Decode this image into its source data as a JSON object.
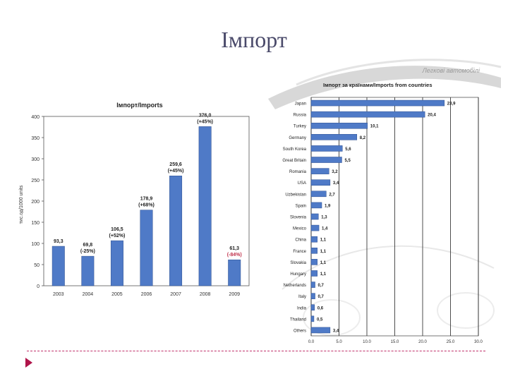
{
  "slide": {
    "title": "Імпорт",
    "brand": "Легкові автомобілі"
  },
  "chart_data": [
    {
      "type": "bar",
      "title": "Імпорт/Imports",
      "ylabel": "тис.од/1000 units",
      "xlabel": "",
      "ylim": [
        0,
        400
      ],
      "yticks": [
        0,
        50,
        100,
        150,
        200,
        250,
        300,
        350,
        400
      ],
      "categories": [
        "2003",
        "2004",
        "2005",
        "2006",
        "2007",
        "2008",
        "2009"
      ],
      "values": [
        93.3,
        69.8,
        106.5,
        178.9,
        259.6,
        376.0,
        61.3
      ],
      "labels": [
        "93,3",
        "69,8",
        "106,5",
        "178,9",
        "259,6",
        "376,0",
        "61,3"
      ],
      "changes": [
        "",
        "(-25%)",
        "(+52%)",
        "(+68%)",
        "(+45%)",
        "(+45%)",
        "(-84%)"
      ],
      "bar_color": "#4f7ac7",
      "negative_color": "#c0304a"
    },
    {
      "type": "bar",
      "orientation": "horizontal",
      "title": "Імпорт за країнами/Imports from countries",
      "xlim": [
        0,
        30
      ],
      "xticks": [
        "0.0",
        "5.0",
        "10.0",
        "15.0",
        "20.0",
        "25.0",
        "30.0"
      ],
      "categories": [
        "Japan",
        "Russia",
        "Turkey",
        "Germany",
        "South Korea",
        "Great Britain",
        "Romania",
        "USA",
        "Uzbekistan",
        "Spain",
        "Slovenia",
        "Mexico",
        "China",
        "France",
        "Slovakia",
        "Hungary",
        "Netherlands",
        "Italy",
        "India",
        "Thailand",
        "Others"
      ],
      "values": [
        23.9,
        20.4,
        10.1,
        8.2,
        5.6,
        5.5,
        3.2,
        3.4,
        2.7,
        1.9,
        1.3,
        1.4,
        1.1,
        1.1,
        1.1,
        1.1,
        0.7,
        0.7,
        0.6,
        0.5,
        3.4
      ],
      "labels": [
        "23,9",
        "20,4",
        "10,1",
        "8,2",
        "5,6",
        "5,5",
        "3,2",
        "3,4",
        "2,7",
        "1,9",
        "1,3",
        "1,4",
        "1,1",
        "1,1",
        "1,1",
        "1,1",
        "0,7",
        "0,7",
        "0,6",
        "0,5",
        "3,4"
      ],
      "bar_color": "#4f7ac7"
    }
  ]
}
